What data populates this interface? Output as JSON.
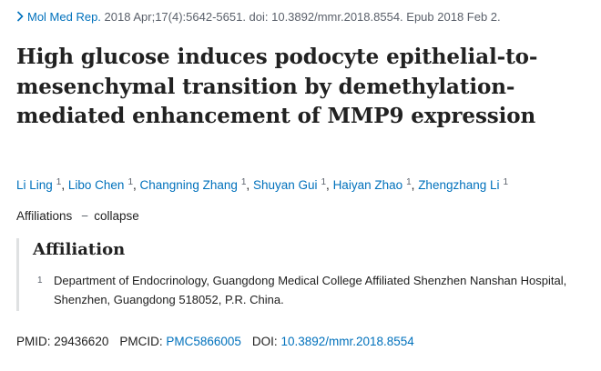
{
  "citation": {
    "journal": "Mol Med Rep.",
    "details": " 2018 Apr;17(4):5642-5651. doi: 10.3892/mmr.2018.8554. Epub 2018 Feb 2."
  },
  "title": "High glucose induces podocyte epithelial-to-mesenchymal transition by demethylation-mediated enhancement of MMP9 expression",
  "authors": [
    {
      "name": "Li Ling",
      "aff": "1"
    },
    {
      "name": "Libo Chen",
      "aff": "1"
    },
    {
      "name": "Changning Zhang",
      "aff": "1"
    },
    {
      "name": "Shuyan Gui",
      "aff": "1"
    },
    {
      "name": "Haiyan Zhao",
      "aff": "1"
    },
    {
      "name": "Zhengzhang Li",
      "aff": "1"
    }
  ],
  "affiliations_toggle": {
    "label": "Affiliations",
    "dash": "−",
    "action": "collapse"
  },
  "affiliation_box": {
    "heading": "Affiliation",
    "items": [
      {
        "num": "1",
        "text": "Department of Endocrinology, Guangdong Medical College Affiliated Shenzhen Nanshan Hospital, Shenzhen, Guangdong 518052, P.R. China."
      }
    ]
  },
  "identifiers": {
    "pmid_label": "PMID: ",
    "pmid": "29436620",
    "pmcid_label": "PMCID: ",
    "pmcid": "PMC5866005",
    "doi_label": "DOI: ",
    "doi": "10.3892/mmr.2018.8554"
  },
  "colors": {
    "link": "#0071bc",
    "text": "#212121",
    "muted": "#5b616b",
    "border": "#dfe1e2"
  }
}
